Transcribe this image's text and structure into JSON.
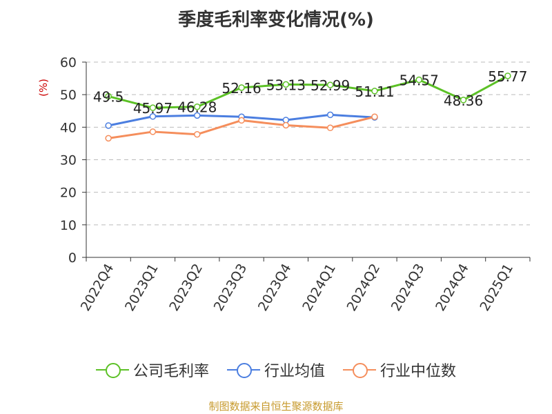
{
  "chart_data": {
    "type": "line",
    "title": "季度毛利率变化情况(%)",
    "ylabel": "(%)",
    "xlabel": "",
    "categories": [
      "2022Q4",
      "2023Q1",
      "2023Q2",
      "2023Q3",
      "2023Q4",
      "2024Q1",
      "2024Q2",
      "2024Q3",
      "2024Q4",
      "2025Q1"
    ],
    "ylim": [
      0,
      60
    ],
    "yticks": [
      "0",
      "10",
      "20",
      "30",
      "40",
      "50",
      "60"
    ],
    "grid": true,
    "legend_position": "bottom",
    "series": [
      {
        "name": "公司毛利率",
        "color": "#5cc126",
        "values": [
          49.5,
          45.97,
          46.28,
          52.16,
          53.13,
          52.99,
          51.11,
          54.57,
          48.36,
          55.77
        ],
        "labels": [
          "49.5",
          "45.97",
          "46.28",
          "52.16",
          "53.13",
          "52.99",
          "51.11",
          "54.57",
          "48.36",
          "55.77"
        ]
      },
      {
        "name": "行业均值",
        "color": "#4b7ee0",
        "values": [
          40.5,
          43.3,
          43.6,
          43.2,
          42.2,
          43.8,
          43.0,
          null,
          null,
          null
        ]
      },
      {
        "name": "行业中位数",
        "color": "#f58e5c",
        "values": [
          36.6,
          38.6,
          37.8,
          42.1,
          40.6,
          39.8,
          43.2,
          null,
          null,
          null
        ]
      }
    ]
  },
  "source": "制图数据来自恒生聚源数据库"
}
